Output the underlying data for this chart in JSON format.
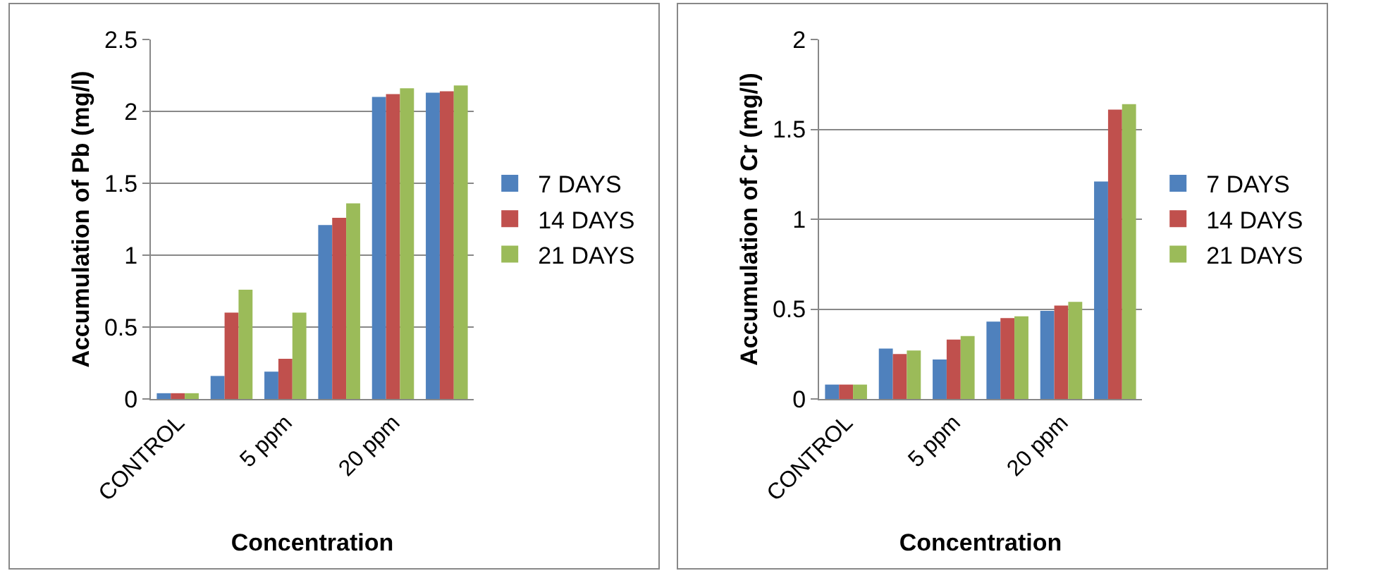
{
  "chart_data": [
    {
      "type": "bar",
      "xlabel": "Concentration",
      "ylabel": "Accumulation of Pb (mg/l)",
      "categories": [
        "CONTROL",
        null,
        "5 ppm",
        null,
        "20 ppm",
        null
      ],
      "series": [
        {
          "name": "7 DAYS",
          "color": "#4f81bd",
          "values": [
            0.04,
            0.16,
            0.19,
            1.21,
            2.1,
            2.13
          ]
        },
        {
          "name": "14 DAYS",
          "color": "#c0504d",
          "values": [
            0.04,
            0.6,
            0.28,
            1.26,
            2.12,
            2.14
          ]
        },
        {
          "name": "21 DAYS",
          "color": "#9bbb59",
          "values": [
            0.04,
            0.76,
            0.6,
            1.36,
            2.16,
            2.18
          ]
        }
      ],
      "ylim": [
        0,
        2.5
      ],
      "yticks": [
        0,
        0.5,
        1,
        1.5,
        2,
        2.5
      ],
      "grid": "y",
      "legend": "right"
    },
    {
      "type": "bar",
      "xlabel": "Concentration",
      "ylabel": "Accumulation of Cr (mg/l)",
      "categories": [
        "CONTROL",
        null,
        "5 ppm",
        null,
        "20 ppm",
        null
      ],
      "series": [
        {
          "name": "7 DAYS",
          "color": "#4f81bd",
          "values": [
            0.08,
            0.28,
            0.22,
            0.43,
            0.49,
            1.21
          ]
        },
        {
          "name": "14 DAYS",
          "color": "#c0504d",
          "values": [
            0.08,
            0.25,
            0.33,
            0.45,
            0.52,
            1.61
          ]
        },
        {
          "name": "21 DAYS",
          "color": "#9bbb59",
          "values": [
            0.08,
            0.27,
            0.35,
            0.46,
            0.54,
            1.64
          ]
        }
      ],
      "ylim": [
        0,
        2
      ],
      "yticks": [
        0,
        0.5,
        1,
        1.5,
        2
      ],
      "grid": "y",
      "legend": "right"
    }
  ]
}
